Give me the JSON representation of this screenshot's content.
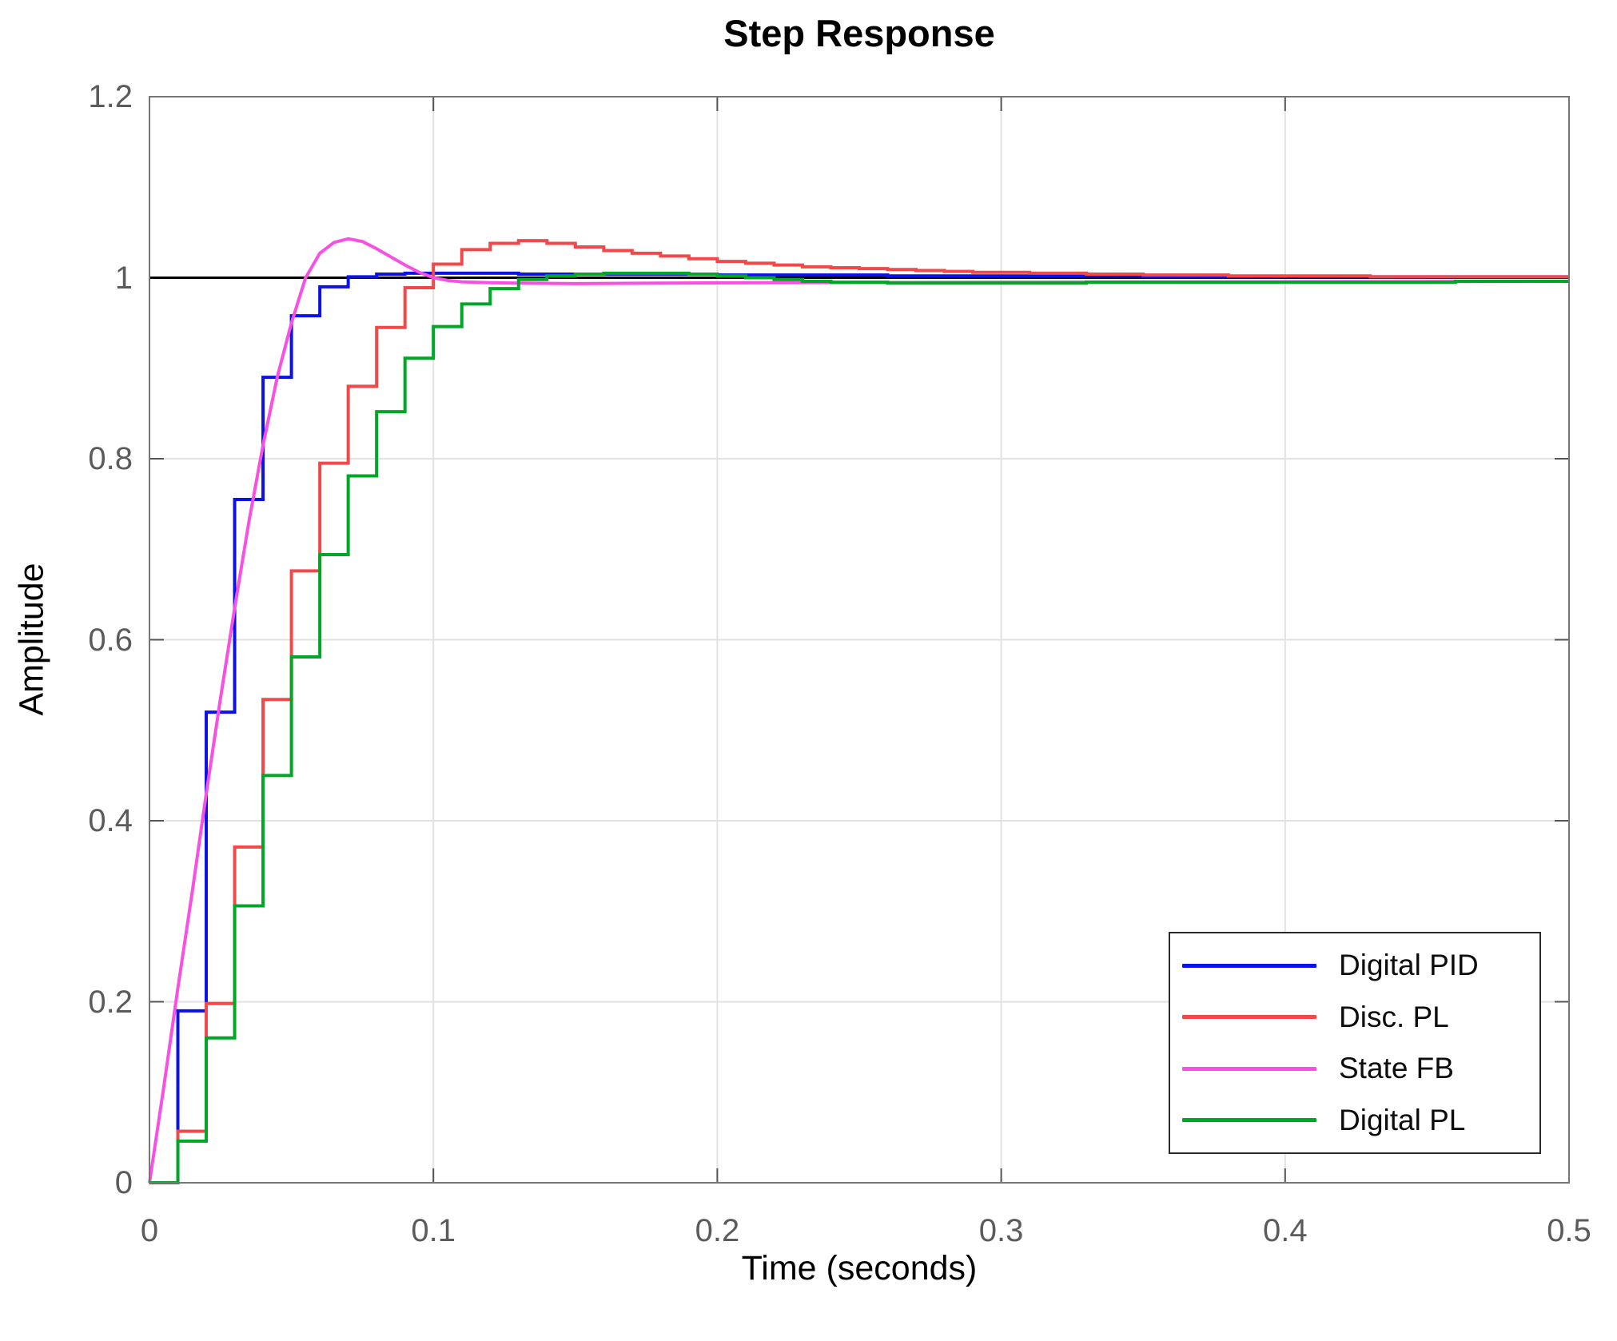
{
  "figure": {
    "title": "Step Response",
    "xlabel": "Time (seconds)",
    "ylabel": "Amplitude",
    "background_color": "#ffffff"
  },
  "style": {
    "grid_color": "#e2e2e2",
    "spine_color": "#767676",
    "tick_mark_color": "#555555",
    "tick_label_color": "#5b5b5b",
    "legend_border_color": "#2a2a2a",
    "title_color": "#000000"
  },
  "chart_data": {
    "type": "line",
    "title": "Step Response",
    "xlabel": "Time (seconds)",
    "ylabel": "Amplitude",
    "xlim": [
      0,
      0.5
    ],
    "ylim": [
      0,
      1.2
    ],
    "xticks": [
      0,
      0.1,
      0.2,
      0.3,
      0.4,
      0.5
    ],
    "xtick_labels": [
      "0",
      "0.1",
      "0.2",
      "0.3",
      "0.4",
      "0.5"
    ],
    "yticks": [
      0,
      0.2,
      0.4,
      0.6,
      0.8,
      1,
      1.2
    ],
    "ytick_labels": [
      "0",
      "0.2",
      "0.4",
      "0.6",
      "0.8",
      "1",
      "1.2"
    ],
    "grid": true,
    "legend_position": "lower-right",
    "reference_line": {
      "y": 1,
      "color": "#000000"
    },
    "sample_time": 0.01,
    "series": [
      {
        "name": "Digital PID",
        "color": "#0a12e6",
        "style": "staircase",
        "values": [
          0,
          0.19,
          0.52,
          0.755,
          0.89,
          0.958,
          0.99,
          1.001,
          1.004,
          1.005,
          1.005,
          1.005,
          1.005,
          1.004,
          1.004,
          1.004,
          1.004,
          1.004,
          1.004,
          1.004,
          1.003,
          1.003,
          1.003,
          1.003,
          1.003,
          1.003,
          1.002,
          1.002,
          1.002,
          1.002,
          1.002,
          1.002,
          1.002,
          1.002,
          1.002,
          1.001,
          1.001,
          1.001,
          1.001,
          1.001,
          1.001,
          1.001,
          1.001,
          1.001,
          1.001,
          1.001,
          1.001,
          1.001,
          1.001,
          1.001,
          1.001
        ]
      },
      {
        "name": "Disc. PL",
        "color": "#f14949",
        "style": "staircase",
        "values": [
          0,
          0.057,
          0.198,
          0.371,
          0.534,
          0.676,
          0.795,
          0.88,
          0.945,
          0.989,
          1.015,
          1.031,
          1.038,
          1.041,
          1.038,
          1.034,
          1.03,
          1.027,
          1.024,
          1.021,
          1.018,
          1.016,
          1.014,
          1.012,
          1.011,
          1.01,
          1.009,
          1.008,
          1.007,
          1.006,
          1.006,
          1.005,
          1.005,
          1.004,
          1.004,
          1.003,
          1.003,
          1.003,
          1.002,
          1.002,
          1.002,
          1.002,
          1.002,
          1.001,
          1.001,
          1.001,
          1.001,
          1.001,
          1.001,
          1.001,
          1.001
        ]
      },
      {
        "name": "State FB",
        "color": "#f750e3",
        "style": "continuous",
        "points": [
          [
            0,
            0
          ],
          [
            0.005,
            0.105
          ],
          [
            0.01,
            0.215
          ],
          [
            0.015,
            0.32
          ],
          [
            0.02,
            0.43
          ],
          [
            0.025,
            0.535
          ],
          [
            0.03,
            0.635
          ],
          [
            0.035,
            0.73
          ],
          [
            0.04,
            0.815
          ],
          [
            0.045,
            0.89
          ],
          [
            0.05,
            0.95
          ],
          [
            0.055,
            1.0
          ],
          [
            0.06,
            1.027
          ],
          [
            0.065,
            1.039
          ],
          [
            0.07,
            1.043
          ],
          [
            0.075,
            1.04
          ],
          [
            0.08,
            1.032
          ],
          [
            0.085,
            1.023
          ],
          [
            0.09,
            1.014
          ],
          [
            0.095,
            1.006
          ],
          [
            0.1,
            1.0
          ],
          [
            0.105,
            0.997
          ],
          [
            0.11,
            0.9955
          ],
          [
            0.12,
            0.9945
          ],
          [
            0.13,
            0.994
          ],
          [
            0.15,
            0.9935
          ],
          [
            0.18,
            0.994
          ],
          [
            0.22,
            0.9945
          ],
          [
            0.3,
            0.995
          ],
          [
            0.4,
            0.9955
          ],
          [
            0.5,
            0.996
          ]
        ]
      },
      {
        "name": "Digital PL",
        "color": "#00a626",
        "style": "staircase",
        "values": [
          0,
          0.046,
          0.16,
          0.306,
          0.45,
          0.581,
          0.694,
          0.781,
          0.852,
          0.911,
          0.946,
          0.971,
          0.988,
          0.998,
          1.002,
          1.004,
          1.005,
          1.005,
          1.005,
          1.004,
          1.002,
          1.0,
          0.998,
          0.996,
          0.995,
          0.995,
          0.994,
          0.994,
          0.994,
          0.994,
          0.994,
          0.994,
          0.994,
          0.995,
          0.995,
          0.995,
          0.995,
          0.995,
          0.995,
          0.995,
          0.995,
          0.995,
          0.995,
          0.995,
          0.995,
          0.995,
          0.996,
          0.996,
          0.996,
          0.996,
          0.996
        ]
      }
    ],
    "legend": {
      "entries": [
        {
          "label": "Digital PID",
          "color": "#0a12e6"
        },
        {
          "label": "Disc. PL",
          "color": "#f14949"
        },
        {
          "label": "State FB",
          "color": "#f750e3"
        },
        {
          "label": "Digital PL",
          "color": "#00a626"
        }
      ]
    }
  }
}
